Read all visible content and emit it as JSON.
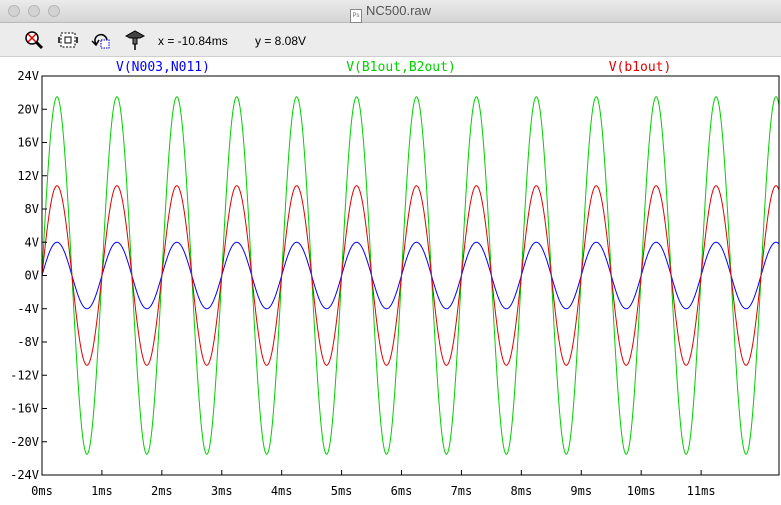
{
  "window": {
    "title": "NC500.raw",
    "file_icon_text": "Ps"
  },
  "toolbar": {
    "buttons": [
      {
        "name": "zoom-out-icon"
      },
      {
        "name": "zoom-fit-icon"
      },
      {
        "name": "undo-zoom-icon"
      },
      {
        "name": "probe-icon"
      }
    ],
    "cursor_x": "x = -10.84ms",
    "cursor_y": "y = 8.08V"
  },
  "colors": {
    "background": "#ffffff",
    "axis": "#000000",
    "trace_blue": "#0000ff",
    "trace_green": "#00d000",
    "trace_red": "#e00000"
  },
  "chart_data": {
    "type": "line",
    "xlabel": "",
    "ylabel": "",
    "xlim": [
      0,
      12.3
    ],
    "ylim": [
      -24,
      24
    ],
    "grid": false,
    "legend_placement": "top",
    "x_ticks": [
      {
        "value": 0,
        "label": "0ms"
      },
      {
        "value": 1,
        "label": "1ms"
      },
      {
        "value": 2,
        "label": "2ms"
      },
      {
        "value": 3,
        "label": "3ms"
      },
      {
        "value": 4,
        "label": "4ms"
      },
      {
        "value": 5,
        "label": "5ms"
      },
      {
        "value": 6,
        "label": "6ms"
      },
      {
        "value": 7,
        "label": "7ms"
      },
      {
        "value": 8,
        "label": "8ms"
      },
      {
        "value": 9,
        "label": "9ms"
      },
      {
        "value": 10,
        "label": "10ms"
      },
      {
        "value": 11,
        "label": "11ms"
      }
    ],
    "y_ticks": [
      {
        "value": 24,
        "label": "24V"
      },
      {
        "value": 20,
        "label": "20V"
      },
      {
        "value": 16,
        "label": "16V"
      },
      {
        "value": 12,
        "label": "12V"
      },
      {
        "value": 8,
        "label": "8V"
      },
      {
        "value": 4,
        "label": "4V"
      },
      {
        "value": 0,
        "label": "0V"
      },
      {
        "value": -4,
        "label": "-4V"
      },
      {
        "value": -8,
        "label": "-8V"
      },
      {
        "value": -12,
        "label": "-12V"
      },
      {
        "value": -16,
        "label": "-16V"
      },
      {
        "value": -20,
        "label": "-20V"
      },
      {
        "value": -24,
        "label": "-24V"
      }
    ],
    "series": [
      {
        "name": "V(N003,N011)",
        "color": "#0000ff",
        "waveform": "sine",
        "amplitude": 4.0,
        "frequency_khz": 1.0,
        "phase_deg": 0
      },
      {
        "name": "V(B1out,B2out)",
        "color": "#00d000",
        "waveform": "sine",
        "amplitude": 21.5,
        "frequency_khz": 1.0,
        "phase_deg": 0
      },
      {
        "name": "V(b1out)",
        "color": "#e00000",
        "waveform": "sine",
        "amplitude": 10.8,
        "frequency_khz": 1.0,
        "phase_deg": 0
      }
    ]
  }
}
